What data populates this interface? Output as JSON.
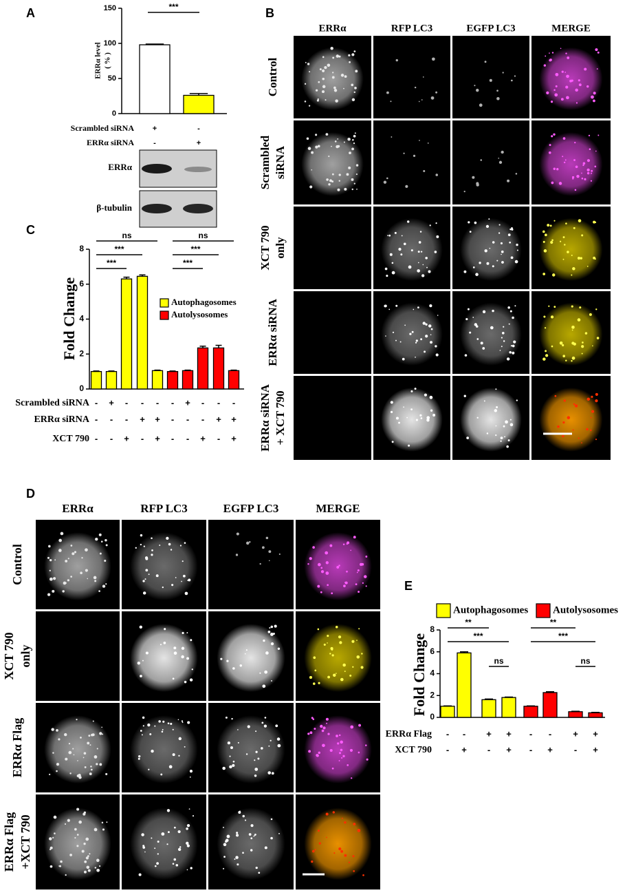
{
  "panel_labels": [
    "A",
    "B",
    "C",
    "D",
    "E"
  ],
  "chart_data": [
    {
      "type": "bar",
      "y_label": [
        "ERRα level",
        "( % )"
      ],
      "categories": [
        null,
        null
      ],
      "values": [
        98,
        26
      ],
      "errors": [
        1,
        2.5
      ],
      "colors": [
        "#ffffff",
        "#ffff00"
      ],
      "ylim": [
        0,
        150
      ],
      "yticks": [
        0,
        50,
        100,
        150
      ],
      "significance": [
        "***"
      ],
      "conditions": [
        {
          "label": "Scrambled siRNA",
          "signs": [
            "+",
            "-"
          ]
        },
        {
          "label": "ERRα siRNA",
          "signs": [
            "-",
            "+"
          ]
        }
      ]
    },
    {
      "type": "bar",
      "y_label": [
        "Fold Change"
      ],
      "categories": [
        null,
        null,
        null,
        null,
        null,
        null,
        null,
        null,
        null,
        null
      ],
      "series": [
        {
          "name": "Autophagosomes",
          "color": "#ffff00",
          "values": [
            1,
            1,
            6.3,
            6.45,
            1.05,
            null,
            null,
            null,
            null,
            null
          ],
          "errors": [
            0.03,
            0.03,
            0.1,
            0.08,
            0.03,
            null,
            null,
            null,
            null,
            null
          ]
        },
        {
          "name": "Autolysosomes",
          "color": "#ff0000",
          "values": [
            null,
            null,
            null,
            null,
            null,
            1,
            1.05,
            2.35,
            2.35,
            1.05
          ],
          "errors": [
            null,
            null,
            null,
            null,
            null,
            0.03,
            0.03,
            0.1,
            0.15,
            0.03
          ]
        }
      ],
      "ylim": [
        0,
        8
      ],
      "yticks": [
        0,
        2,
        4,
        6,
        8
      ],
      "significance": [
        "ns",
        "***",
        "***",
        "ns",
        "***",
        "***"
      ],
      "conditions": [
        {
          "label": "Scrambled siRNA",
          "signs": [
            "-",
            "+",
            "-",
            "-",
            "-",
            "-",
            "+",
            "-",
            "-",
            "-"
          ]
        },
        {
          "label": "ERRα siRNA",
          "signs": [
            "-",
            "-",
            "-",
            "+",
            "+",
            "-",
            "-",
            "-",
            "+",
            "+"
          ]
        },
        {
          "label": "XCT 790",
          "signs": [
            "-",
            "-",
            "+",
            "-",
            "+",
            "-",
            "-",
            "+",
            "-",
            "+"
          ]
        }
      ]
    },
    {
      "type": "bar",
      "y_label": [
        "Fold Change"
      ],
      "categories": [
        null,
        null,
        null,
        null,
        null,
        null,
        null,
        null
      ],
      "series": [
        {
          "name": "Autophagosomes",
          "color": "#ffff00",
          "values": [
            1.02,
            5.9,
            1.62,
            1.82,
            null,
            null,
            null,
            null
          ],
          "errors": [
            0.03,
            0.1,
            0.06,
            0.04,
            null,
            null,
            null,
            null
          ]
        },
        {
          "name": "Autolysosomes",
          "color": "#ff0000",
          "values": [
            null,
            null,
            null,
            null,
            1.02,
            2.27,
            0.52,
            0.42
          ],
          "errors": [
            null,
            null,
            null,
            null,
            0.03,
            0.08,
            0.04,
            0.04
          ]
        }
      ],
      "ylim": [
        0,
        8
      ],
      "yticks": [
        0,
        2,
        4,
        6,
        8
      ],
      "significance": [
        "**",
        "***",
        "ns",
        "**",
        "***",
        "ns"
      ],
      "conditions": [
        {
          "label": "ERRα Flag",
          "signs": [
            "-",
            "-",
            "+",
            "+",
            "-",
            "-",
            "+",
            "+"
          ]
        },
        {
          "label": "XCT 790",
          "signs": [
            "-",
            "+",
            "-",
            "+",
            "-",
            "+",
            "-",
            "+"
          ]
        }
      ]
    }
  ],
  "blot": {
    "bands": [
      "ERRα",
      "β-tubulin"
    ]
  },
  "panel_b": {
    "columns": [
      "ERRα",
      "RFP LC3",
      "EGFP LC3",
      "MERGE"
    ],
    "rows": [
      [
        "Control"
      ],
      [
        "Scrambled",
        "siRNA"
      ],
      [
        "XCT 790",
        "only"
      ],
      [
        "ERRα siRNA"
      ],
      [
        "ERRα siRNA",
        "+ XCT 790"
      ]
    ]
  },
  "panel_d": {
    "columns": [
      "ERRα",
      "RFP LC3",
      "EGFP LC3",
      "MERGE"
    ],
    "rows": [
      [
        "Control"
      ],
      [
        "XCT 790",
        "only"
      ],
      [
        "ERRα Flag"
      ],
      [
        "ERRα Flag",
        "+XCT 790"
      ]
    ]
  }
}
